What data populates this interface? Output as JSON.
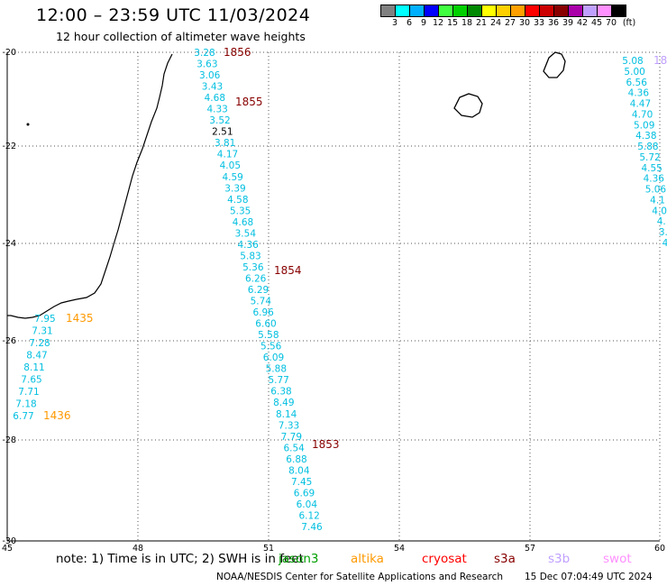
{
  "header": {
    "title": "12:00 – 23:59 UTC 11/03/2024",
    "subtitle": "12 hour collection of altimeter wave heights"
  },
  "scale": {
    "colors": [
      "#808080",
      "#00ffff",
      "#00b0ff",
      "#0000ff",
      "#40ff40",
      "#00d000",
      "#008800",
      "#ffff00",
      "#ffd000",
      "#ffa000",
      "#ff0000",
      "#cc0000",
      "#880000",
      "#aa00aa",
      "#c0a0ff",
      "#ff90ff",
      "#000000"
    ],
    "labels": [
      "3",
      "6",
      "9",
      "12",
      "15",
      "18",
      "21",
      "24",
      "27",
      "30",
      "33",
      "36",
      "39",
      "42",
      "45",
      "70",
      "(ft)"
    ]
  },
  "axes": {
    "x_ticks": [
      "45",
      "48",
      "51",
      "54",
      "57",
      "60"
    ],
    "y_ticks": [
      "-20",
      "-22",
      "-24",
      "-26",
      "-28",
      "-30"
    ]
  },
  "tracks": {
    "main": {
      "values": [
        "3.28",
        "3.63",
        "3.06",
        "3.43",
        "4.68",
        "4.33",
        "3.52",
        "2.51",
        "3.81",
        "4.17",
        "4.05",
        "4.59",
        "3.39",
        "4.58",
        "5.35",
        "4.68",
        "3.54",
        "4.36",
        "5.83",
        "5.36",
        "6.26",
        "6.29",
        "5.74",
        "6.96",
        "6.60",
        "5.58",
        "5.56",
        "6.09",
        "5.88",
        "5.77",
        "6.38",
        "8.49",
        "8.14",
        "7.33",
        "7.79",
        "6.54",
        "6.88",
        "8.04",
        "7.45",
        "6.69",
        "6.04",
        "6.12",
        "7.46"
      ],
      "time_labels": [
        "1856",
        "1855",
        "1854",
        "1853"
      ]
    },
    "west": {
      "values": [
        "7.95",
        "7.31",
        "7.28",
        "8.47",
        "8.11",
        "7.65",
        "7.71",
        "7.18",
        "6.77"
      ],
      "time_labels": [
        "1435",
        "1436"
      ]
    },
    "east": {
      "values": [
        "5.08",
        "5.00",
        "6.56",
        "4.36",
        "4.47",
        "4.70",
        "5.09",
        "4.38",
        "5.88",
        "5.72",
        "4.55",
        "4.36",
        "5.06",
        "4.1",
        "4.0",
        "4.",
        "3.",
        "4"
      ],
      "time_labels": [
        "18"
      ]
    }
  },
  "footer": {
    "note": "note:  1) Time is in UTC;  2) SWH is in feet",
    "satellites": [
      {
        "name": "jason3",
        "color": "#00a000"
      },
      {
        "name": "altika",
        "color": "#ff9900"
      },
      {
        "name": "cryosat",
        "color": "#ff0000"
      },
      {
        "name": "s3a",
        "color": "#880000"
      },
      {
        "name": "s3b",
        "color": "#c0a0ff"
      },
      {
        "name": "swot",
        "color": "#ff90ff"
      }
    ],
    "credit": "NOAA/NESDIS Center for Satellite Applications and Research",
    "timestamp": "15 Dec 07:04:49 UTC 2024"
  },
  "colors": {
    "value_text": "#00bfe0",
    "s3a_label": "#880000",
    "altika_label": "#ff9900",
    "s3b_label": "#c0a0ff",
    "dark_value": "#000000"
  }
}
